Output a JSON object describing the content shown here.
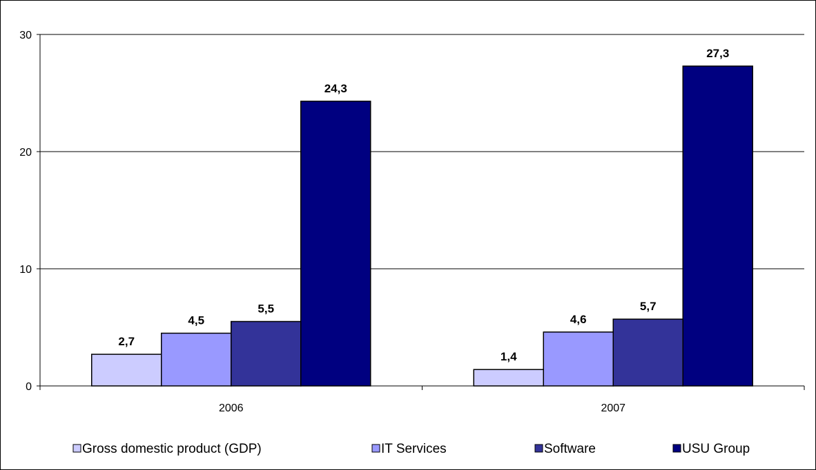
{
  "chart_data": {
    "type": "bar",
    "title": "",
    "xlabel": "",
    "ylabel": "",
    "categories": [
      "2006",
      "2007"
    ],
    "ylim": [
      0,
      30
    ],
    "yticks": [
      "0",
      "10",
      "20",
      "30"
    ],
    "grid": true,
    "legend_position": "bottom",
    "series": [
      {
        "name": "Gross domestic product (GDP)",
        "color": "#ccccff",
        "values": [
          2.7,
          1.4
        ],
        "labels": [
          "2,7",
          "1,4"
        ]
      },
      {
        "name": "IT Services",
        "color": "#9999ff",
        "values": [
          4.5,
          4.6
        ],
        "labels": [
          "4,5",
          "4,6"
        ]
      },
      {
        "name": "Software",
        "color": "#333399",
        "values": [
          5.5,
          5.7
        ],
        "labels": [
          "5,5",
          "5,7"
        ]
      },
      {
        "name": "USU Group",
        "color": "#000080",
        "values": [
          24.3,
          27.3
        ],
        "labels": [
          "24,3",
          "27,3"
        ]
      }
    ]
  }
}
